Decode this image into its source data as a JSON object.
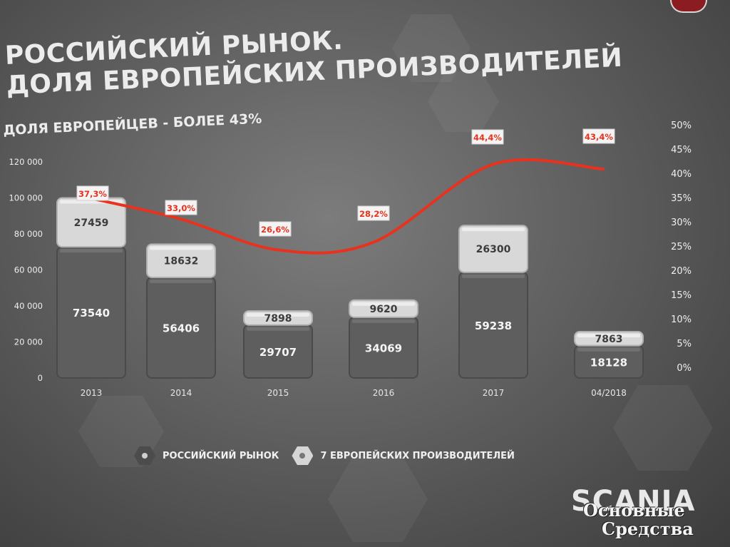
{
  "title": {
    "line1": "РОССИЙСКИЙ РЫНОК.",
    "line2": "ДОЛЯ ЕВРОПЕЙСКИХ ПРОИЗВОДИТЕЛЕЙ"
  },
  "subtitle": "ДОЛЯ ЕВРОПЕЙЦЕВ - БОЛЕЕ 43%",
  "brand": "SCANIA",
  "watermark": {
    "line1": "Основные",
    "line2": "Средства"
  },
  "colors": {
    "line": "#e8321e",
    "bar_dark": "#5e5e5e",
    "bar_light": "#d8d8d8",
    "label_red": "#e8321e"
  },
  "chart_data": {
    "type": "bar",
    "stacked": true,
    "categories": [
      "2013",
      "2014",
      "2015",
      "2016",
      "2017",
      "04/2018"
    ],
    "series": [
      {
        "name": "РОССИЙСКИЙ РЫНОК",
        "values": [
          73540,
          56406,
          29707,
          34069,
          59238,
          18128
        ]
      },
      {
        "name": "7 ЕВРОПЕЙСКИХ ПРОИЗВОДИТЕЛЕЙ",
        "values": [
          27459,
          18632,
          7898,
          9620,
          26300,
          7863
        ]
      }
    ],
    "line_series": {
      "values": [
        37.3,
        33.0,
        26.6,
        28.2,
        44.4,
        43.4
      ],
      "labels": [
        "37,3%",
        "33,0%",
        "26,6%",
        "28,2%",
        "44,4%",
        "43,4%"
      ]
    },
    "y_left": {
      "ticks": [
        "0",
        "20 000",
        "40 000",
        "60 000",
        "80 000",
        "100 000",
        "120 000"
      ],
      "ylim": [
        0,
        120000
      ]
    },
    "y_right": {
      "ticks": [
        "0%",
        "5%",
        "10%",
        "15%",
        "20%",
        "25%",
        "30%",
        "35%",
        "40%",
        "45%",
        "50%"
      ],
      "ylim": [
        0,
        50
      ]
    },
    "legend": [
      "РОССИЙСКИЙ РЫНОК",
      "7 ЕВРОПЕЙСКИХ ПРОИЗВОДИТЕЛЕЙ"
    ],
    "legend_position": "bottom",
    "grid": false
  }
}
